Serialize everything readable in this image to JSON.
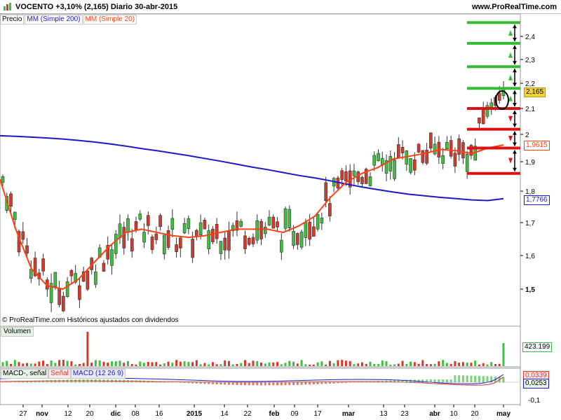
{
  "header": {
    "title": "VOCENTO   +3,10% (2,165)   Diario   30-abr-2015",
    "site": "www.ProRealTime.com"
  },
  "legend": {
    "price": "Precio",
    "ma200": "MM (Simple 200)",
    "ma20": "MM (Simple 20)"
  },
  "copyright": "© ProRealTime.com Históricos ajustados con dividendos",
  "volume_panel": {
    "label": "Volumen",
    "last_value": "423.199"
  },
  "macd_panel": {
    "labels": [
      "MACD-, señal",
      "Señal",
      "MACD (12 26 9)"
    ],
    "value_a": "0,0339",
    "value_b": "0,0253",
    "tick": "-0,1"
  },
  "price_tags": {
    "last": "2,165",
    "ma20": "1,9615",
    "ma200": "1,7766"
  },
  "colors": {
    "up": "#3fbf3f",
    "down": "#d33a2c",
    "ma200": "#1a1acc",
    "ma20": "#ff4010",
    "level_green": "#33bb33",
    "level_red": "#dd1111"
  },
  "chart_data": {
    "type": "candlestick",
    "title": "VOCENTO +3,10% (2,165) Diario 30-abr-2015",
    "y_ticks": [
      "2,4",
      "2,3",
      "2,2",
      "2,1",
      "2",
      "1,9",
      "1,8",
      "1,7",
      "1,6",
      "1,5"
    ],
    "ylim": [
      1.42,
      2.47
    ],
    "x_ticks": [
      "27",
      "nov",
      "12",
      "20",
      "dic",
      "08",
      "16",
      "2015",
      "14",
      "22",
      "feb",
      "09",
      "17",
      "mar",
      "13",
      "23",
      "abr",
      "10",
      "20",
      "may"
    ],
    "last_price": 2.165,
    "series": [
      {
        "name": "MM (Simple 200)",
        "last": 1.7766,
        "values": [
          1.995,
          1.993,
          1.99,
          1.987,
          1.983,
          1.978,
          1.972,
          1.965,
          1.957,
          1.948,
          1.94,
          1.931,
          1.922,
          1.912,
          1.902,
          1.892,
          1.882,
          1.873,
          1.863,
          1.853,
          1.845,
          1.835,
          1.824,
          1.814,
          1.805,
          1.797,
          1.79,
          1.785,
          1.78,
          1.776,
          1.772,
          1.77,
          1.776
        ]
      },
      {
        "name": "MM (Simple 20)",
        "last": 1.9615,
        "values": [
          1.84,
          1.68,
          1.56,
          1.51,
          1.5,
          1.53,
          1.58,
          1.63,
          1.67,
          1.68,
          1.67,
          1.66,
          1.655,
          1.66,
          1.67,
          1.68,
          1.68,
          1.68,
          1.67,
          1.69,
          1.72,
          1.78,
          1.83,
          1.86,
          1.88,
          1.91,
          1.92,
          1.93,
          1.945,
          1.94,
          1.93,
          1.95,
          1.9615
        ]
      }
    ],
    "levels_green": [
      2.18,
      2.27,
      2.37,
      2.46
    ],
    "levels_red": [
      2.1,
      2.02,
      1.95,
      1.86
    ],
    "volume_last": 423199,
    "macd": {
      "macd": 0.0339,
      "signal": 0.0253
    }
  }
}
